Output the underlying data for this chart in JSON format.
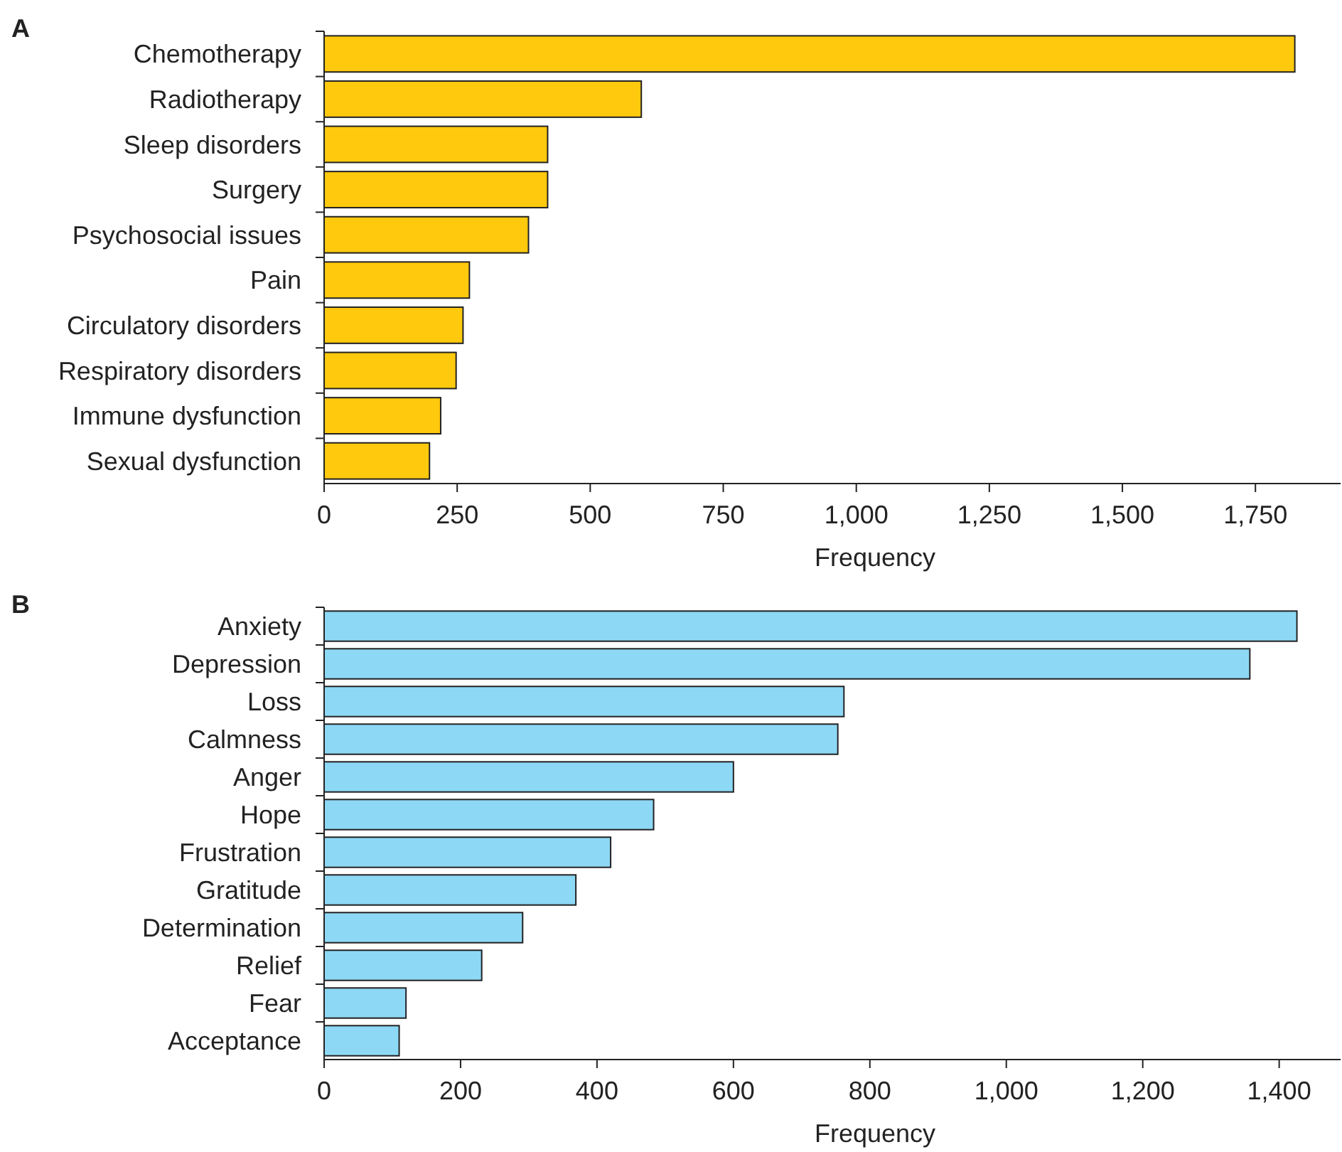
{
  "chart_data": [
    {
      "type": "bar",
      "title": "A",
      "orientation": "horizontal",
      "xlabel": "Frequency",
      "categories": [
        "Chemotherapy",
        "Radiotherapy",
        "Sleep disorders",
        "Surgery",
        "Psychosocial issues",
        "Pain",
        "Circulatory disorders",
        "Respiratory disorders",
        "Immune dysfunction",
        "Sexual dysfunction"
      ],
      "values": [
        1824,
        596,
        420,
        420,
        384,
        273,
        261,
        248,
        219,
        198
      ],
      "color": "#ffc90d",
      "xlim": [
        0,
        1910
      ],
      "xticks": [
        0,
        250,
        500,
        750,
        {
          "value": 1000,
          "label": "1,000"
        },
        {
          "value": 1250,
          "label": "1,250"
        },
        {
          "value": 1500,
          "label": "1,500"
        },
        {
          "value": 1750,
          "label": "1,750"
        }
      ]
    },
    {
      "type": "bar",
      "title": "B",
      "orientation": "horizontal",
      "xlabel": "Frequency",
      "categories": [
        "Anxiety",
        "Depression",
        "Loss",
        "Calmness",
        "Anger",
        "Hope",
        "Frustration",
        "Gratitude",
        "Determination",
        "Relief",
        "Fear",
        "Acceptance"
      ],
      "values": [
        1426,
        1357,
        762,
        753,
        600,
        483,
        420,
        369,
        291,
        231,
        120,
        110
      ],
      "color": "#8dd8f5",
      "xlim": [
        0,
        1490
      ],
      "xticks": [
        0,
        200,
        400,
        600,
        800,
        {
          "value": 1000,
          "label": "1,000"
        },
        {
          "value": 1200,
          "label": "1,200"
        },
        {
          "value": 1400,
          "label": "1,400"
        }
      ]
    }
  ]
}
